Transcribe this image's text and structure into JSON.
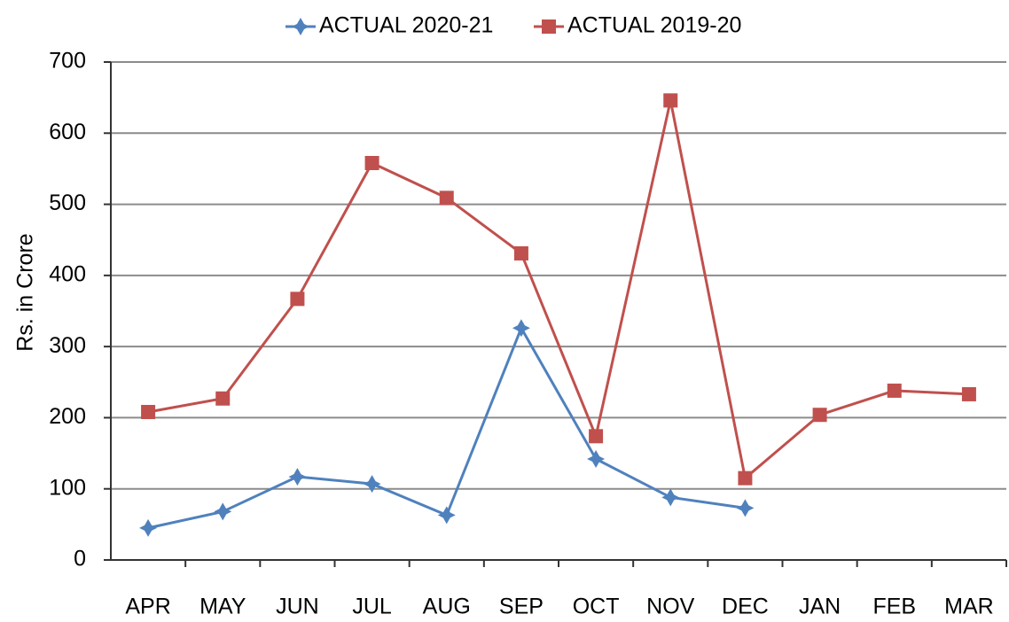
{
  "chart_data": {
    "type": "line",
    "ylabel": "Rs. in Crore",
    "categories": [
      "APR",
      "MAY",
      "JUN",
      "JUL",
      "AUG",
      "SEP",
      "OCT",
      "NOV",
      "DEC",
      "JAN",
      "FEB",
      "MAR"
    ],
    "series": [
      {
        "name": "ACTUAL 2020-21",
        "color": "#4f81bd",
        "marker": "diamond",
        "values": [
          45,
          68,
          117,
          107,
          63,
          326,
          142,
          88,
          73,
          null,
          null,
          null
        ]
      },
      {
        "name": "ACTUAL 2019-20",
        "color": "#c0504d",
        "marker": "square",
        "values": [
          208,
          227,
          367,
          558,
          509,
          431,
          174,
          646,
          115,
          204,
          238,
          233
        ]
      }
    ],
    "ylim": [
      0,
      700
    ],
    "yticks": [
      0,
      100,
      200,
      300,
      400,
      500,
      600,
      700
    ],
    "grid": true,
    "legend": "top"
  }
}
